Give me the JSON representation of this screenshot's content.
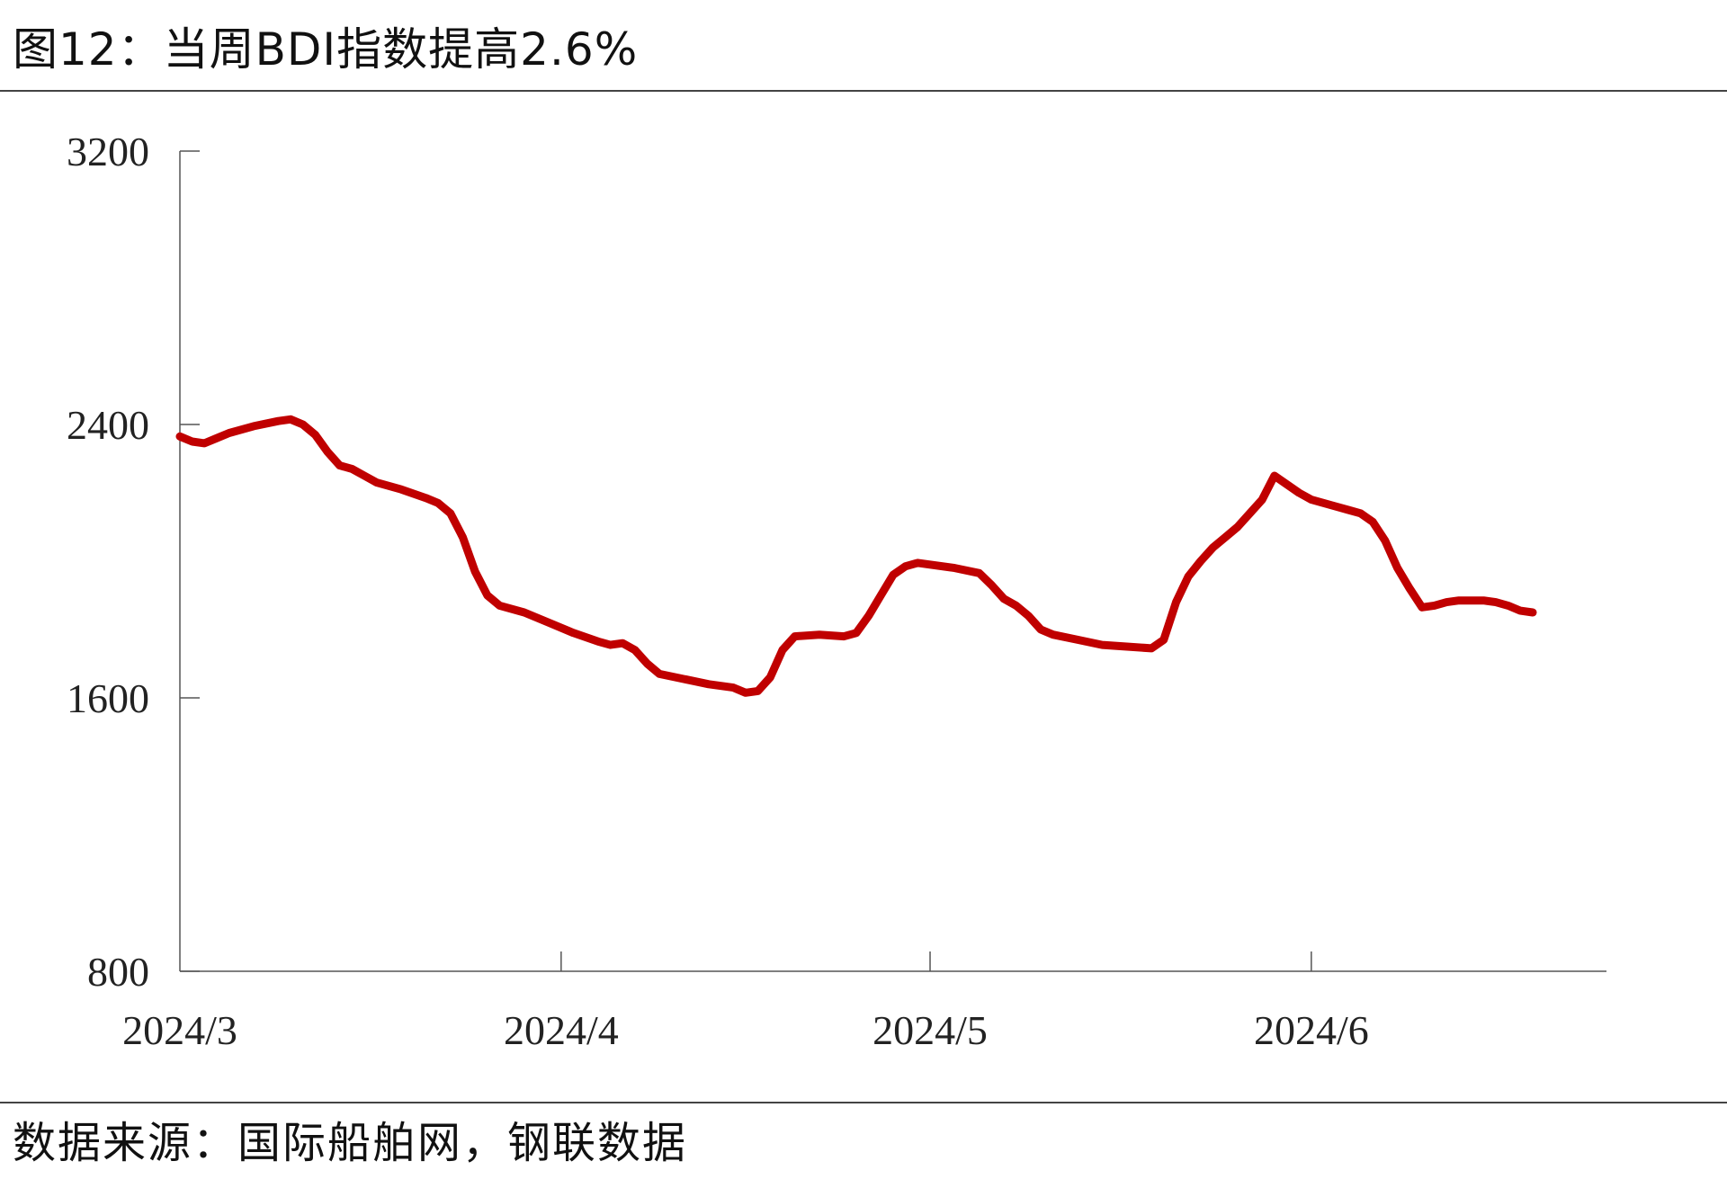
{
  "title": "图12：当周BDI指数提高2.6%",
  "source": "数据来源：国际船舶网，钢联数据",
  "chart_data": {
    "type": "line",
    "title": "图12：当周BDI指数提高2.6%",
    "xlabel": "",
    "ylabel": "",
    "ylim": [
      800,
      3200
    ],
    "yticks": [
      800,
      1600,
      2400,
      3200
    ],
    "xlim": [
      "2024-03-01",
      "2024-06-25"
    ],
    "xticks": [
      {
        "date": "2024-03-01",
        "label": "2024/3"
      },
      {
        "date": "2024-04-01",
        "label": "2024/4"
      },
      {
        "date": "2024-05-01",
        "label": "2024/5"
      },
      {
        "date": "2024-06-01",
        "label": "2024/6"
      }
    ],
    "grid": false,
    "series": [
      {
        "color": "#c00000",
        "points": [
          [
            "2024-03-01",
            2365
          ],
          [
            "2024-03-02",
            2350
          ],
          [
            "2024-03-03",
            2345
          ],
          [
            "2024-03-04",
            2360
          ],
          [
            "2024-03-05",
            2375
          ],
          [
            "2024-03-07",
            2395
          ],
          [
            "2024-03-09",
            2410
          ],
          [
            "2024-03-10",
            2415
          ],
          [
            "2024-03-11",
            2400
          ],
          [
            "2024-03-12",
            2370
          ],
          [
            "2024-03-13",
            2320
          ],
          [
            "2024-03-14",
            2280
          ],
          [
            "2024-03-15",
            2270
          ],
          [
            "2024-03-16",
            2250
          ],
          [
            "2024-03-17",
            2230
          ],
          [
            "2024-03-19",
            2210
          ],
          [
            "2024-03-21",
            2185
          ],
          [
            "2024-03-22",
            2170
          ],
          [
            "2024-03-23",
            2140
          ],
          [
            "2024-03-24",
            2070
          ],
          [
            "2024-03-25",
            1970
          ],
          [
            "2024-03-26",
            1900
          ],
          [
            "2024-03-27",
            1870
          ],
          [
            "2024-03-29",
            1850
          ],
          [
            "2024-03-31",
            1820
          ],
          [
            "2024-04-02",
            1790
          ],
          [
            "2024-04-04",
            1765
          ],
          [
            "2024-04-05",
            1755
          ],
          [
            "2024-04-06",
            1760
          ],
          [
            "2024-04-07",
            1740
          ],
          [
            "2024-04-08",
            1700
          ],
          [
            "2024-04-09",
            1670
          ],
          [
            "2024-04-11",
            1655
          ],
          [
            "2024-04-13",
            1640
          ],
          [
            "2024-04-15",
            1630
          ],
          [
            "2024-04-16",
            1615
          ],
          [
            "2024-04-17",
            1620
          ],
          [
            "2024-04-18",
            1660
          ],
          [
            "2024-04-19",
            1740
          ],
          [
            "2024-04-20",
            1780
          ],
          [
            "2024-04-22",
            1785
          ],
          [
            "2024-04-24",
            1780
          ],
          [
            "2024-04-25",
            1790
          ],
          [
            "2024-04-26",
            1840
          ],
          [
            "2024-04-27",
            1900
          ],
          [
            "2024-04-28",
            1960
          ],
          [
            "2024-04-29",
            1985
          ],
          [
            "2024-04-30",
            1995
          ],
          [
            "2024-05-03",
            1980
          ],
          [
            "2024-05-05",
            1965
          ],
          [
            "2024-05-06",
            1930
          ],
          [
            "2024-05-07",
            1890
          ],
          [
            "2024-05-08",
            1870
          ],
          [
            "2024-05-09",
            1840
          ],
          [
            "2024-05-10",
            1800
          ],
          [
            "2024-05-11",
            1785
          ],
          [
            "2024-05-13",
            1770
          ],
          [
            "2024-05-15",
            1755
          ],
          [
            "2024-05-17",
            1750
          ],
          [
            "2024-05-19",
            1745
          ],
          [
            "2024-05-20",
            1770
          ],
          [
            "2024-05-21",
            1880
          ],
          [
            "2024-05-22",
            1955
          ],
          [
            "2024-05-23",
            2000
          ],
          [
            "2024-05-24",
            2040
          ],
          [
            "2024-05-25",
            2070
          ],
          [
            "2024-05-26",
            2100
          ],
          [
            "2024-05-27",
            2140
          ],
          [
            "2024-05-28",
            2180
          ],
          [
            "2024-05-29",
            2250
          ],
          [
            "2024-05-30",
            2225
          ],
          [
            "2024-05-31",
            2200
          ],
          [
            "2024-06-01",
            2180
          ],
          [
            "2024-06-03",
            2160
          ],
          [
            "2024-06-04",
            2150
          ],
          [
            "2024-06-05",
            2140
          ],
          [
            "2024-06-06",
            2115
          ],
          [
            "2024-06-07",
            2060
          ],
          [
            "2024-06-08",
            1980
          ],
          [
            "2024-06-09",
            1920
          ],
          [
            "2024-06-10",
            1865
          ],
          [
            "2024-06-11",
            1870
          ],
          [
            "2024-06-12",
            1880
          ],
          [
            "2024-06-13",
            1885
          ],
          [
            "2024-06-15",
            1885
          ],
          [
            "2024-06-16",
            1880
          ],
          [
            "2024-06-17",
            1870
          ],
          [
            "2024-06-18",
            1855
          ],
          [
            "2024-06-19",
            1850
          ]
        ]
      }
    ]
  }
}
